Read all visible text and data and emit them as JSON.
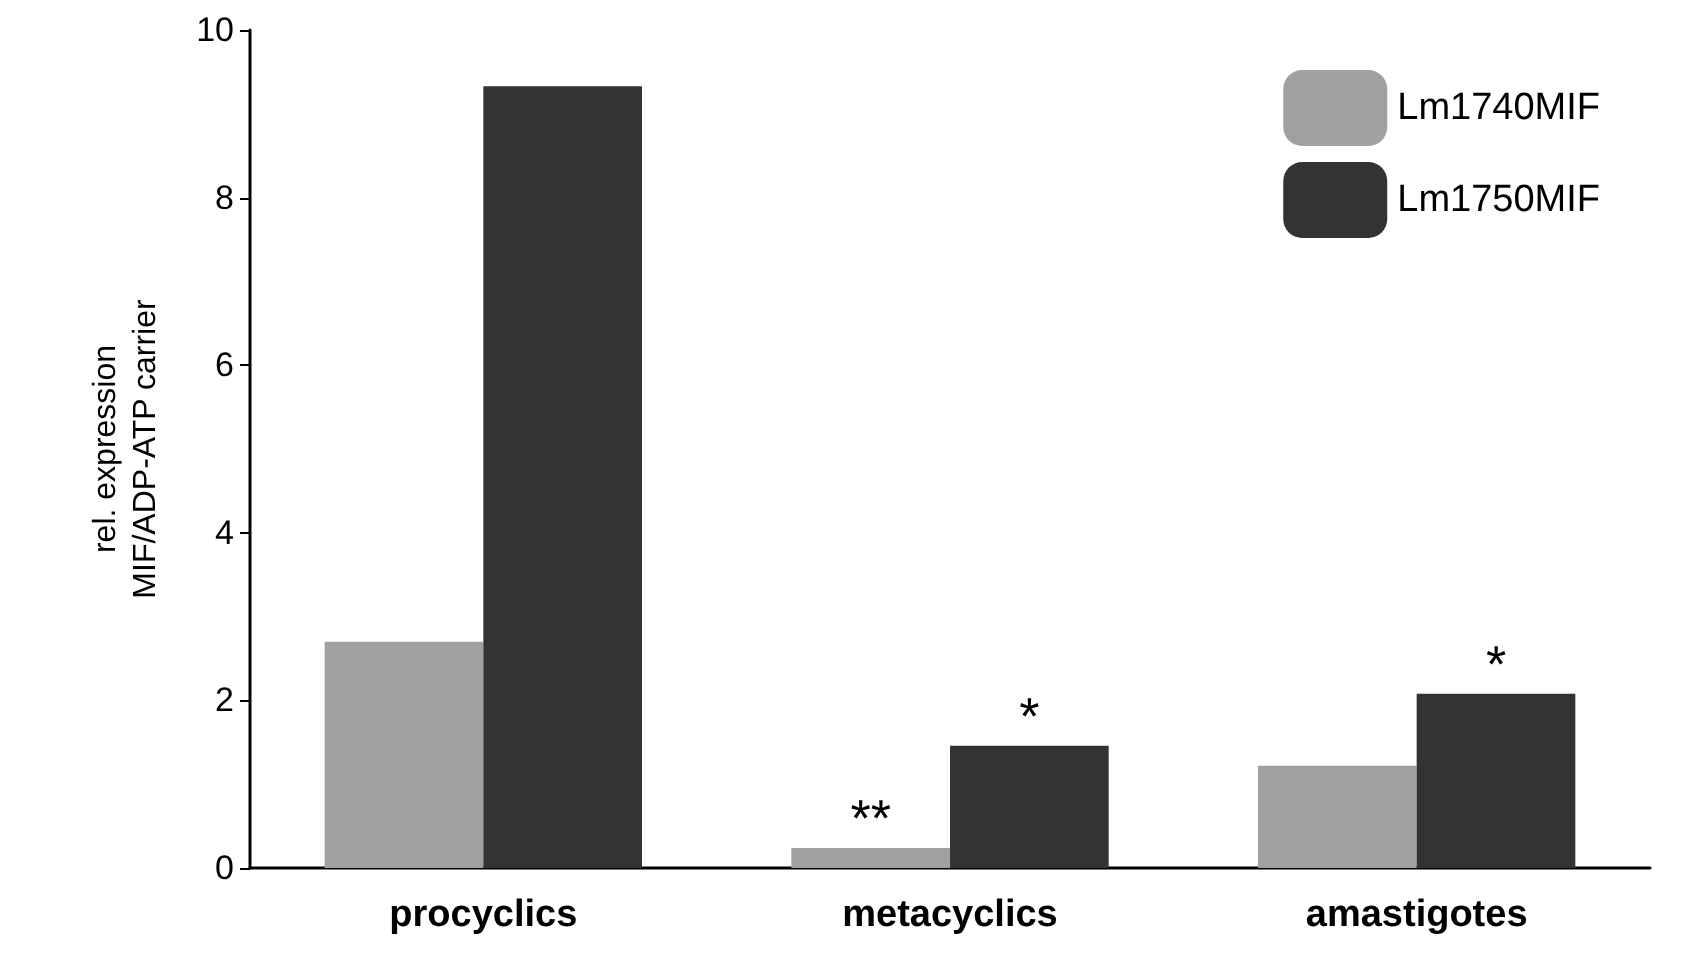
{
  "chart_data": {
    "type": "bar",
    "categories": [
      "procyclics",
      "metacyclics",
      "amastigotes"
    ],
    "series": [
      {
        "name": "Lm1740MIF",
        "color": "#a0a0a0",
        "values": [
          2.7,
          0.24,
          1.22
        ]
      },
      {
        "name": "Lm1750MIF",
        "color": "#333333",
        "values": [
          9.33,
          1.46,
          2.08
        ]
      }
    ],
    "ylabel": "rel. expression\nMIF/ADP-ATP carrier",
    "ylim": [
      0,
      10
    ],
    "yticks": [
      0,
      2,
      4,
      6,
      8,
      10
    ],
    "annotations": [
      {
        "text": "**",
        "x": "metacyclics",
        "y": 0.24
      },
      {
        "text": "*",
        "x": "metacyclics",
        "y": 1.46
      },
      {
        "text": "*",
        "x": "amastigotes",
        "y": 2.08
      }
    ],
    "grid": false,
    "legend": "top right"
  }
}
